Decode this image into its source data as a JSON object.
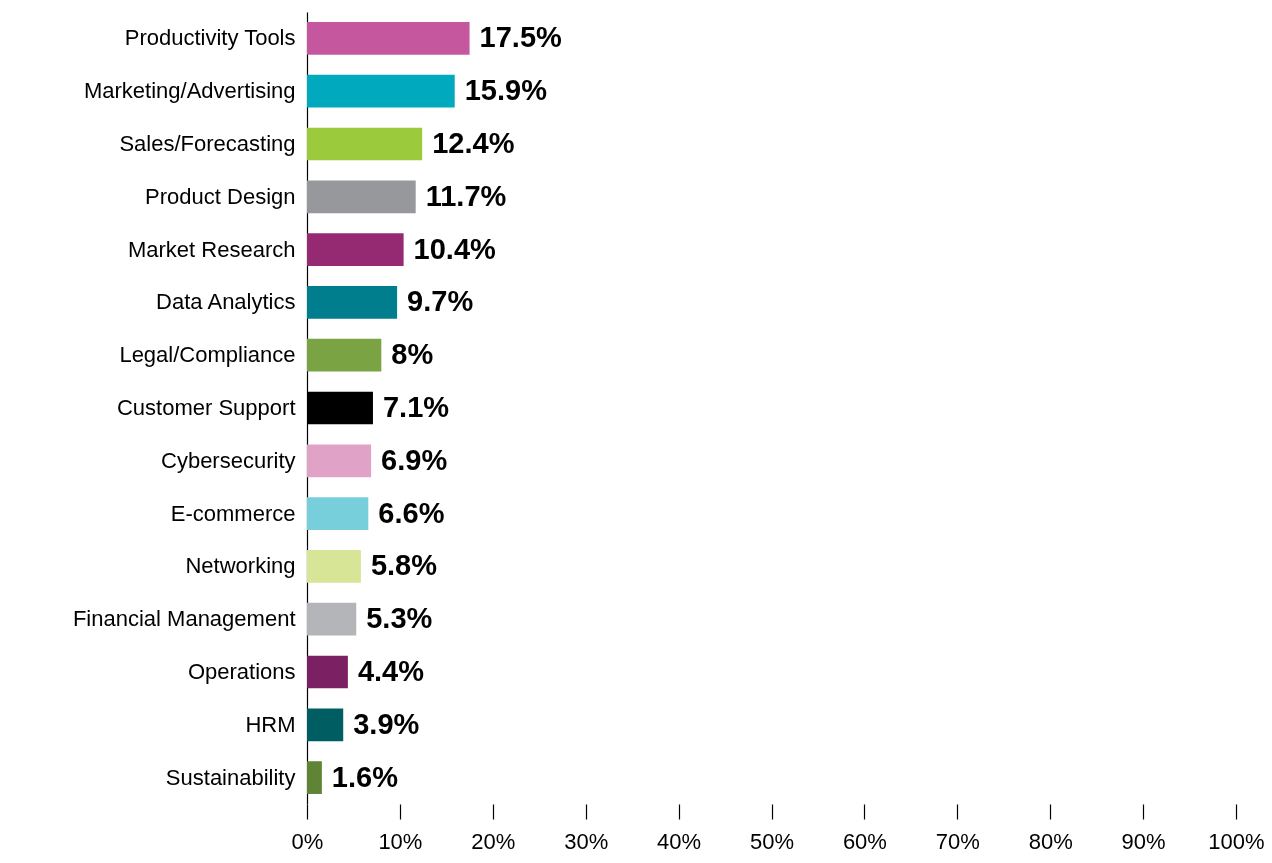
{
  "chart_data": {
    "type": "bar",
    "orientation": "horizontal",
    "categories": [
      "Productivity Tools",
      "Marketing/Advertising",
      "Sales/Forecasting",
      "Product Design",
      "Market Research",
      "Data Analytics",
      "Legal/Compliance",
      "Customer Support",
      "Cybersecurity",
      "E-commerce",
      "Networking",
      "Financial Management",
      "Operations",
      "HRM",
      "Sustainability"
    ],
    "values": [
      17.5,
      15.9,
      12.4,
      11.7,
      10.4,
      9.7,
      8,
      7.1,
      6.9,
      6.6,
      5.8,
      5.3,
      4.4,
      3.9,
      1.6
    ],
    "value_labels": [
      "17.5%",
      "15.9%",
      "12.4%",
      "11.7%",
      "10.4%",
      "9.7%",
      "8%",
      "7.1%",
      "6.9%",
      "6.6%",
      "5.8%",
      "5.3%",
      "4.4%",
      "3.9%",
      "1.6%"
    ],
    "colors": [
      "#c5579f",
      "#00a9bd",
      "#9bcb3c",
      "#97989c",
      "#952a72",
      "#007e8d",
      "#7aa343",
      "#000000",
      "#e1a2c8",
      "#77cfdb",
      "#d7e597",
      "#b4b5b8",
      "#7b2163",
      "#005e63",
      "#5f8436"
    ],
    "xlim": [
      0,
      100
    ],
    "xticks": [
      {
        "value": 0,
        "label": "0%"
      },
      {
        "value": 10,
        "label": "10%"
      },
      {
        "value": 20,
        "label": "20%"
      },
      {
        "value": 30,
        "label": "30%"
      },
      {
        "value": 40,
        "label": "40%"
      },
      {
        "value": 50,
        "label": "50%"
      },
      {
        "value": 60,
        "label": "60%"
      },
      {
        "value": 70,
        "label": "70%"
      },
      {
        "value": 80,
        "label": "80%"
      },
      {
        "value": 90,
        "label": "90%"
      },
      {
        "value": 100,
        "label": "100%"
      }
    ],
    "grid": false
  }
}
